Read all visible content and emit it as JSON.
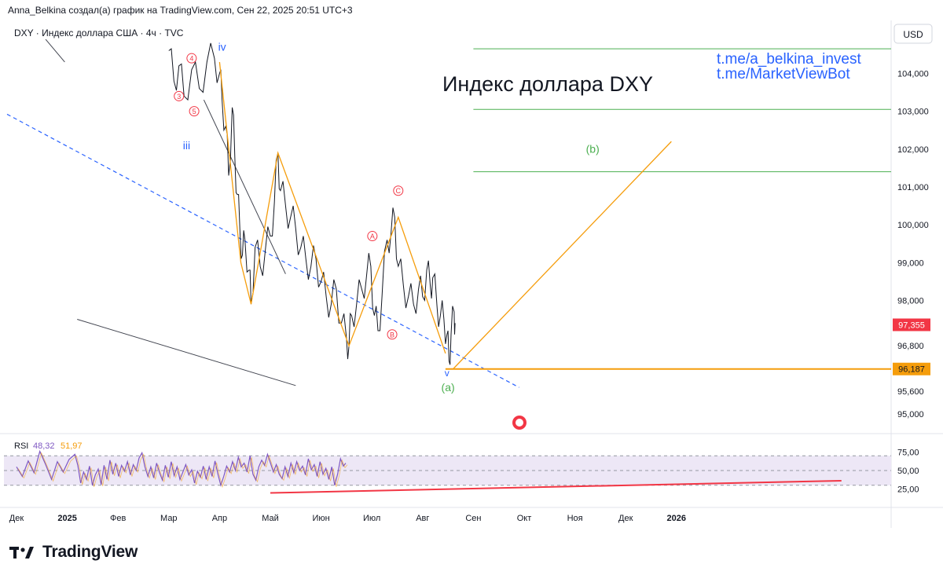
{
  "header": {
    "text": "Anna_Belkina создал(а) график на TradingView.com, Сен 22, 2025 20:51 UTC+3"
  },
  "footer": {
    "brand": "TradingView",
    "logo_icon": "tradingview-logo-icon"
  },
  "chart_data": {
    "type": "line",
    "symbol_label": "DXY · Индекс доллара США · 4ч · TVC",
    "title": "Индекс доллара DXY",
    "links": [
      "t.me/a_belkina_invest",
      "t.me/MarketViewBot"
    ],
    "currency": "USD",
    "price_ylim": [
      94.5,
      105.4
    ],
    "price_ticks": [
      {
        "value": 104.0,
        "label": "104,000"
      },
      {
        "value": 103.0,
        "label": "103,000"
      },
      {
        "value": 102.0,
        "label": "102,000"
      },
      {
        "value": 101.0,
        "label": "101,000"
      },
      {
        "value": 100.0,
        "label": "100,000"
      },
      {
        "value": 99.0,
        "label": "99,000"
      },
      {
        "value": 98.0,
        "label": "98,000"
      },
      {
        "value": 96.8,
        "label": "96,800"
      },
      {
        "value": 95.6,
        "label": "95,600"
      },
      {
        "value": 95.0,
        "label": "95,000"
      }
    ],
    "last_price": {
      "value": 97.355,
      "label": "97,355",
      "color": "#f23645"
    },
    "level_label": {
      "value": 96.187,
      "label": "96,187",
      "color": "#f59d0c"
    },
    "x_labels": [
      "Дек",
      "2025",
      "Фев",
      "Мар",
      "Апр",
      "Май",
      "Июн",
      "Июл",
      "Авг",
      "Сен",
      "Окт",
      "Ноя",
      "Дек",
      "2026"
    ],
    "x_label_index": [
      0,
      1,
      2,
      3,
      4,
      5,
      6,
      7,
      8,
      9,
      10,
      11,
      12,
      13
    ],
    "price_series": [
      [
        0,
        104.6
      ],
      [
        0.1,
        103.8
      ],
      [
        0.2,
        104.2
      ],
      [
        0.3,
        103.4
      ],
      [
        0.45,
        104.1
      ],
      [
        0.6,
        103.6
      ],
      [
        0.75,
        104.3
      ],
      [
        0.9,
        104.4
      ],
      [
        1.0,
        104.0
      ],
      [
        1.05,
        103.3
      ],
      [
        1.12,
        102.6
      ],
      [
        1.18,
        101.3
      ],
      [
        1.25,
        103.1
      ],
      [
        1.3,
        101.8
      ],
      [
        1.35,
        100.8
      ],
      [
        1.4,
        99.9
      ],
      [
        1.45,
        99.2
      ],
      [
        1.5,
        99.6
      ],
      [
        1.58,
        98.8
      ],
      [
        1.62,
        97.9
      ],
      [
        1.7,
        99.4
      ],
      [
        1.8,
        98.9
      ],
      [
        1.9,
        99.3
      ],
      [
        2.0,
        99.7
      ],
      [
        2.08,
        100.6
      ],
      [
        2.15,
        101.9
      ],
      [
        2.2,
        100.9
      ],
      [
        2.3,
        100.5
      ],
      [
        2.4,
        100.2
      ],
      [
        2.5,
        99.9
      ],
      [
        2.6,
        99.4
      ],
      [
        2.7,
        99.1
      ],
      [
        2.8,
        98.9
      ],
      [
        2.9,
        99.1
      ],
      [
        3.0,
        98.5
      ],
      [
        3.1,
        98.1
      ],
      [
        3.2,
        97.9
      ],
      [
        3.3,
        98.3
      ],
      [
        3.4,
        97.4
      ],
      [
        3.5,
        97.0
      ],
      [
        3.55,
        96.8
      ],
      [
        3.6,
        97.6
      ],
      [
        3.7,
        97.9
      ],
      [
        3.8,
        98.3
      ],
      [
        3.9,
        98.7
      ],
      [
        3.98,
        98.9
      ],
      [
        4.05,
        97.6
      ],
      [
        4.12,
        97.2
      ],
      [
        4.2,
        98.1
      ],
      [
        4.3,
        99.6
      ],
      [
        4.38,
        99.8
      ],
      [
        4.45,
        100.2
      ],
      [
        4.52,
        98.9
      ],
      [
        4.62,
        98.4
      ],
      [
        4.72,
        98.1
      ],
      [
        4.82,
        97.9
      ],
      [
        4.92,
        98.3
      ],
      [
        5.0,
        98.1
      ],
      [
        5.08,
        98.8
      ],
      [
        5.15,
        98.4
      ],
      [
        5.2,
        98.6
      ],
      [
        5.28,
        97.9
      ],
      [
        5.35,
        97.6
      ],
      [
        5.42,
        97.5
      ],
      [
        5.48,
        97.1
      ],
      [
        5.52,
        96.4
      ],
      [
        5.56,
        97.1
      ],
      [
        5.62,
        97.7
      ],
      [
        5.64,
        97.4
      ]
    ],
    "level_lines": [
      104.65,
      103.05,
      101.4
    ],
    "annotations": [
      {
        "text": "iv",
        "x": 1.05,
        "y": 104.6,
        "color": "#2962ff"
      },
      {
        "text": "iii",
        "x": 0.35,
        "y": 102.0,
        "color": "#2962ff"
      },
      {
        "text": "v",
        "x": 5.48,
        "y": 96.0,
        "color": "#2962ff"
      },
      {
        "text": "(a)",
        "x": 5.5,
        "y": 95.6,
        "color": "#4caf50"
      },
      {
        "text": "(b)",
        "x": 8.35,
        "y": 101.9,
        "color": "#4caf50"
      }
    ],
    "wave_labels": [
      {
        "text": "4",
        "x": 0.45,
        "y": 104.4
      },
      {
        "text": "3",
        "x": 0.2,
        "y": 103.4
      },
      {
        "text": "5",
        "x": 0.5,
        "y": 103.0
      },
      {
        "text": "A",
        "x": 4.01,
        "y": 99.7
      },
      {
        "text": "C",
        "x": 4.52,
        "y": 100.9
      },
      {
        "text": "B",
        "x": 4.4,
        "y": 97.1
      }
    ],
    "zigzag_points": [
      [
        1.0,
        104.3
      ],
      [
        1.42,
        99.0
      ],
      [
        1.62,
        97.9
      ],
      [
        2.15,
        101.9
      ],
      [
        3.55,
        96.8
      ],
      [
        4.52,
        100.2
      ],
      [
        5.45,
        96.6
      ]
    ],
    "projection": {
      "from": [
        5.6,
        96.187
      ],
      "to": [
        9.9,
        102.2
      ]
    },
    "hline_96187": {
      "from": 5.45,
      "to": 9.9,
      "value": 96.187
    },
    "downtrend_dashed": {
      "from": [
        0,
        102.9
      ],
      "to": [
        9.9,
        95.7
      ],
      "color": "#2962ff"
    },
    "upper_trendline": {
      "from": [
        3.35,
        103.3
      ],
      "to": [
        5.3,
        98.7
      ]
    },
    "lower_trendline": {
      "from": [
        1.35,
        97.5
      ],
      "to": [
        5.5,
        95.75
      ]
    },
    "vertex_line": {
      "from": [
        0.45,
        104.9
      ],
      "to": [
        0.95,
        104.3
      ]
    },
    "rsi": {
      "label": "RSI",
      "value1": "48,32",
      "value2": "51,97",
      "ticks": [
        {
          "value": 75,
          "label": "75,00"
        },
        {
          "value": 50,
          "label": "50,00"
        },
        {
          "value": 25,
          "label": "25,00"
        }
      ],
      "upper": 70,
      "lower": 30,
      "band_color": "#ede7f6",
      "support_line": {
        "from": [
          2.0,
          25
        ],
        "to": [
          6.5,
          33
        ]
      },
      "series": [
        [
          0,
          55
        ],
        [
          0.1,
          42
        ],
        [
          0.2,
          63
        ],
        [
          0.3,
          47
        ],
        [
          0.4,
          76
        ],
        [
          0.5,
          58
        ],
        [
          0.6,
          38
        ],
        [
          0.7,
          62
        ],
        [
          0.8,
          48
        ],
        [
          0.9,
          65
        ],
        [
          1.0,
          72
        ],
        [
          1.05,
          57
        ],
        [
          1.1,
          33
        ],
        [
          1.15,
          48
        ],
        [
          1.2,
          38
        ],
        [
          1.25,
          56
        ],
        [
          1.3,
          30
        ],
        [
          1.35,
          44
        ],
        [
          1.4,
          52
        ],
        [
          1.45,
          31
        ],
        [
          1.5,
          57
        ],
        [
          1.55,
          38
        ],
        [
          1.6,
          64
        ],
        [
          1.65,
          45
        ],
        [
          1.7,
          60
        ],
        [
          1.75,
          42
        ],
        [
          1.8,
          57
        ],
        [
          1.85,
          49
        ],
        [
          1.9,
          62
        ],
        [
          1.95,
          44
        ],
        [
          2.0,
          58
        ],
        [
          2.05,
          50
        ],
        [
          2.1,
          67
        ],
        [
          2.15,
          74
        ],
        [
          2.2,
          55
        ],
        [
          2.25,
          42
        ],
        [
          2.3,
          55
        ],
        [
          2.35,
          40
        ],
        [
          2.4,
          60
        ],
        [
          2.45,
          47
        ],
        [
          2.5,
          37
        ],
        [
          2.55,
          57
        ],
        [
          2.6,
          41
        ],
        [
          2.65,
          62
        ],
        [
          2.7,
          43
        ],
        [
          2.75,
          55
        ],
        [
          2.8,
          38
        ],
        [
          2.9,
          58
        ],
        [
          2.95,
          44
        ],
        [
          3.0,
          51
        ],
        [
          3.05,
          33
        ],
        [
          3.1,
          49
        ],
        [
          3.15,
          41
        ],
        [
          3.2,
          56
        ],
        [
          3.25,
          38
        ],
        [
          3.3,
          55
        ],
        [
          3.35,
          42
        ],
        [
          3.4,
          63
        ],
        [
          3.45,
          45
        ],
        [
          3.5,
          30
        ],
        [
          3.55,
          42
        ],
        [
          3.6,
          56
        ],
        [
          3.65,
          48
        ],
        [
          3.7,
          62
        ],
        [
          3.75,
          50
        ],
        [
          3.8,
          68
        ],
        [
          3.85,
          55
        ],
        [
          3.9,
          60
        ],
        [
          3.95,
          48
        ],
        [
          4.0,
          70
        ],
        [
          4.05,
          45
        ],
        [
          4.1,
          37
        ],
        [
          4.15,
          55
        ],
        [
          4.2,
          64
        ],
        [
          4.25,
          57
        ],
        [
          4.3,
          72
        ],
        [
          4.35,
          60
        ],
        [
          4.4,
          48
        ],
        [
          4.45,
          58
        ],
        [
          4.5,
          45
        ],
        [
          4.55,
          39
        ],
        [
          4.6,
          55
        ],
        [
          4.65,
          42
        ],
        [
          4.7,
          60
        ],
        [
          4.75,
          47
        ],
        [
          4.8,
          62
        ],
        [
          4.85,
          50
        ],
        [
          4.9,
          56
        ],
        [
          4.95,
          44
        ],
        [
          5.0,
          66
        ],
        [
          5.05,
          51
        ],
        [
          5.1,
          58
        ],
        [
          5.15,
          42
        ],
        [
          5.2,
          62
        ],
        [
          5.25,
          45
        ],
        [
          5.3,
          53
        ],
        [
          5.35,
          38
        ],
        [
          5.4,
          55
        ],
        [
          5.45,
          30
        ],
        [
          5.5,
          45
        ],
        [
          5.55,
          66
        ],
        [
          5.6,
          56
        ],
        [
          5.64,
          60
        ]
      ]
    }
  }
}
